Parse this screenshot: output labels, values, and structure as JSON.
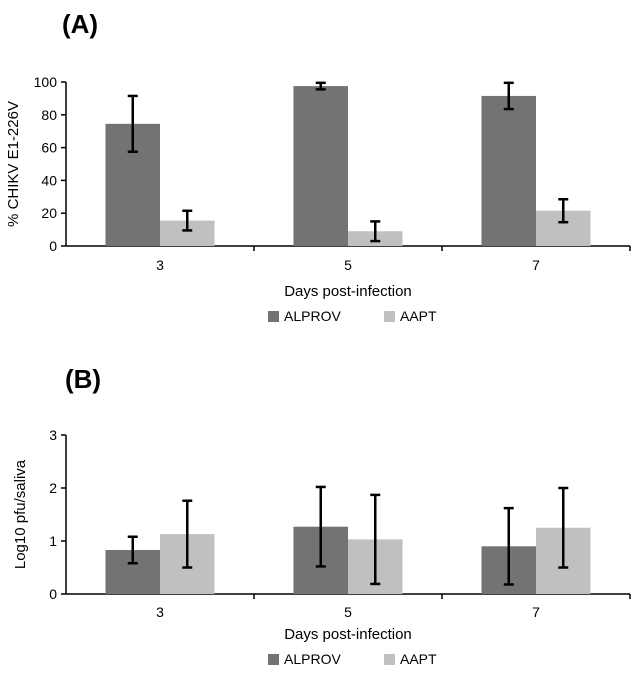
{
  "chart_data": [
    {
      "panel": "(A)",
      "type": "bar",
      "categories": [
        "3",
        "5",
        "7"
      ],
      "series": [
        {
          "name": "ALPROV",
          "color": "#737373",
          "values": [
            74.5,
            97.5,
            91.5
          ],
          "errors": [
            17,
            2,
            8
          ]
        },
        {
          "name": "AAPT",
          "color": "#c0c0c0",
          "values": [
            15.5,
            9,
            21.5
          ],
          "errors": [
            6,
            6,
            7
          ]
        }
      ],
      "xlabel": "Days post-infection",
      "ylabel": "% CHIKV E1-226V",
      "ylim": [
        0,
        100
      ],
      "yticks": [
        "0",
        "20",
        "40",
        "60",
        "80",
        "100"
      ],
      "legend_position": "bottom-center",
      "grid": false
    },
    {
      "panel": "(B)",
      "type": "bar",
      "categories": [
        "3",
        "5",
        "7"
      ],
      "series": [
        {
          "name": "ALPROV",
          "color": "#737373",
          "values": [
            0.83,
            1.27,
            0.9
          ],
          "errors": [
            0.25,
            0.75,
            0.72
          ]
        },
        {
          "name": "AAPT",
          "color": "#c0c0c0",
          "values": [
            1.13,
            1.03,
            1.25
          ],
          "errors": [
            0.63,
            0.84,
            0.75
          ]
        }
      ],
      "xlabel": "Days post-infection",
      "ylabel": "Log10 pfu/saliva",
      "ylim": [
        0,
        3
      ],
      "yticks": [
        "0",
        "1",
        "2",
        "3"
      ],
      "legend_position": "bottom-center",
      "grid": false
    }
  ]
}
